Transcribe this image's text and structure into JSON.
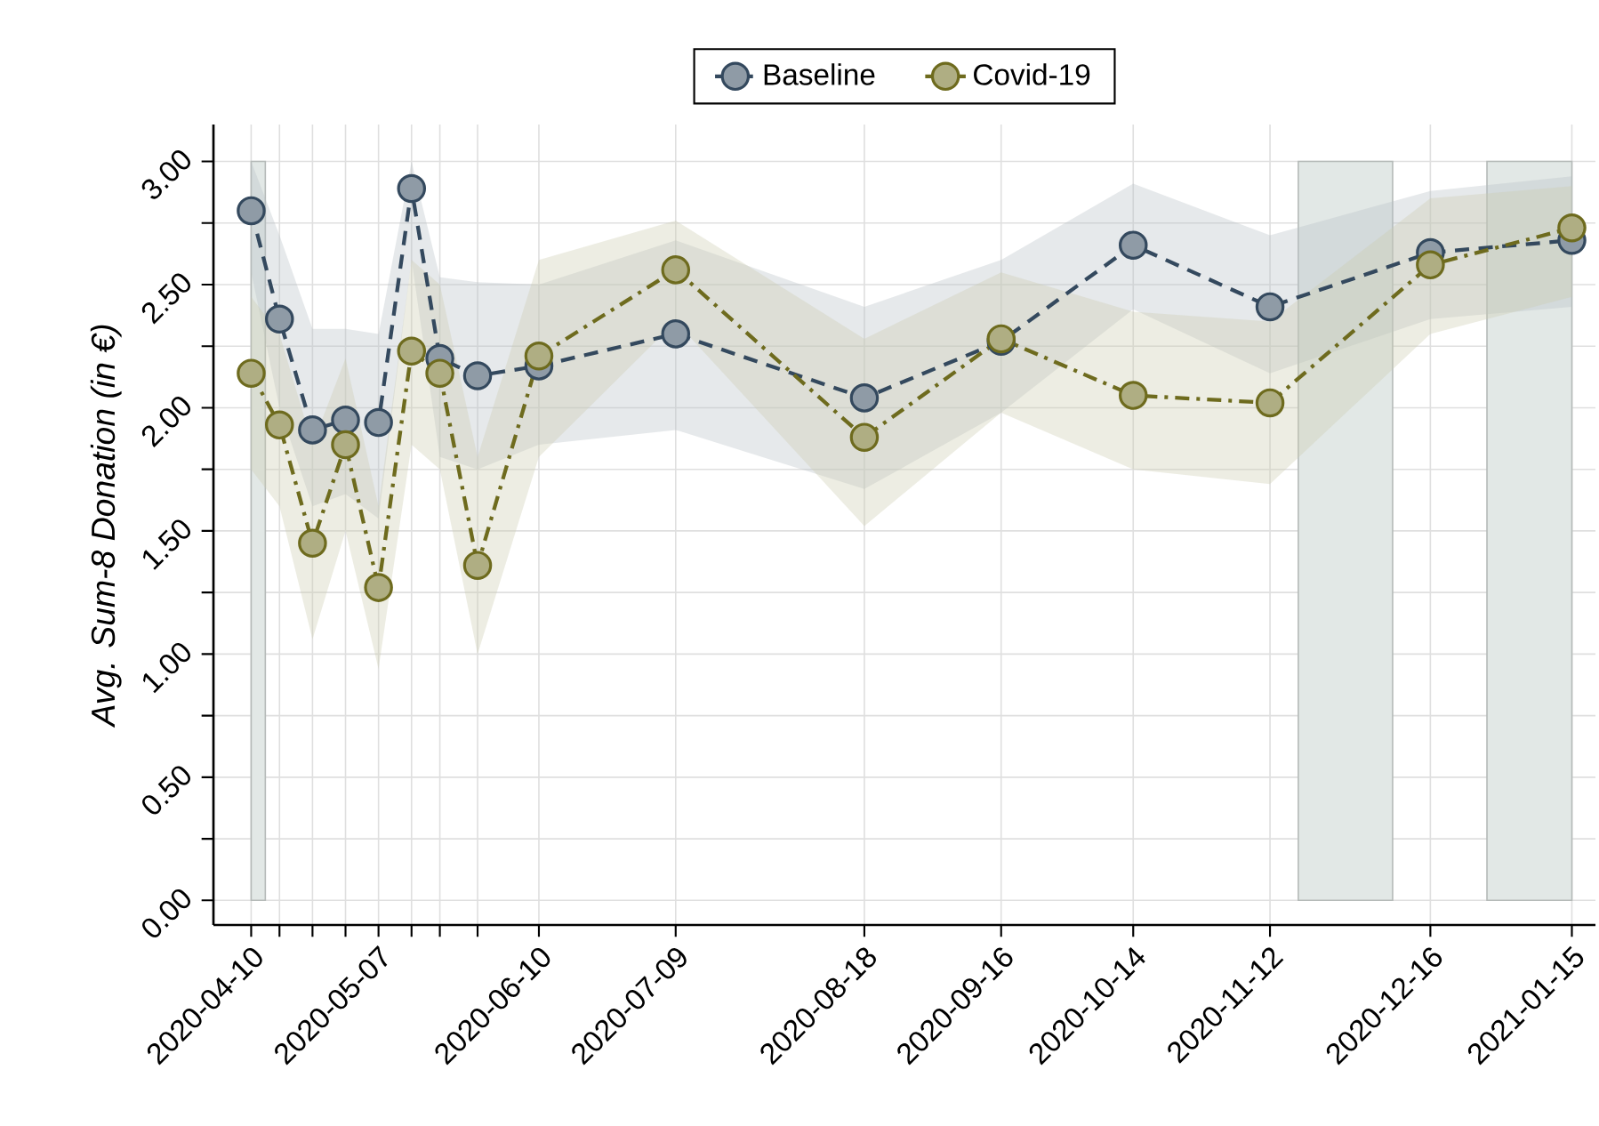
{
  "chart_data": {
    "type": "line",
    "ylabel": "Avg. Sum-8 Donation (in €)",
    "x": [
      "2020-04-10",
      "2020-04-16",
      "2020-04-23",
      "2020-04-30",
      "2020-05-07",
      "2020-05-14",
      "2020-05-20",
      "2020-05-28",
      "2020-06-10",
      "2020-07-09",
      "2020-08-18",
      "2020-09-16",
      "2020-10-14",
      "2020-11-12",
      "2020-12-16",
      "2021-01-15"
    ],
    "series": [
      {
        "name": "Baseline",
        "color": "#34495e",
        "line_style": "dashed",
        "values": [
          2.8,
          2.36,
          1.91,
          1.95,
          1.94,
          2.89,
          2.2,
          2.13,
          2.17,
          2.3,
          2.04,
          2.27,
          2.66,
          2.41,
          2.63,
          2.68
        ],
        "lower": [
          2.55,
          2.0,
          1.6,
          1.65,
          1.55,
          2.6,
          1.8,
          1.75,
          1.85,
          1.91,
          1.67,
          1.98,
          2.4,
          2.14,
          2.36,
          2.41
        ],
        "upper": [
          3.0,
          2.7,
          2.32,
          2.32,
          2.3,
          3.0,
          2.53,
          2.51,
          2.5,
          2.68,
          2.41,
          2.6,
          2.91,
          2.7,
          2.88,
          2.94
        ]
      },
      {
        "name": "Covid-19",
        "color": "#6e6b1e",
        "line_style": "dashdot",
        "values": [
          2.14,
          1.93,
          1.45,
          1.85,
          1.27,
          2.23,
          2.14,
          1.36,
          2.21,
          2.56,
          1.88,
          2.28,
          2.05,
          2.02,
          2.58,
          2.73
        ],
        "lower": [
          1.75,
          1.6,
          1.06,
          1.5,
          0.94,
          1.85,
          1.75,
          1.0,
          1.8,
          2.35,
          1.52,
          1.98,
          1.75,
          1.69,
          2.3,
          2.45
        ],
        "upper": [
          2.45,
          2.3,
          1.85,
          2.2,
          1.6,
          2.6,
          2.5,
          1.8,
          2.6,
          2.76,
          2.28,
          2.55,
          2.39,
          2.35,
          2.85,
          2.9
        ]
      }
    ],
    "xlim": [
      "2020-04-02",
      "2021-01-20"
    ],
    "xticks": [
      {
        "value": "2020-04-10",
        "label": "2020-04-10"
      },
      {
        "value": "2020-04-16",
        "label": null
      },
      {
        "value": "2020-04-23",
        "label": null
      },
      {
        "value": "2020-04-30",
        "label": null
      },
      {
        "value": "2020-05-07",
        "label": "2020-05-07"
      },
      {
        "value": "2020-05-14",
        "label": null
      },
      {
        "value": "2020-05-20",
        "label": null
      },
      {
        "value": "2020-05-28",
        "label": null
      },
      {
        "value": "2020-06-10",
        "label": "2020-06-10"
      },
      {
        "value": "2020-07-09",
        "label": "2020-07-09"
      },
      {
        "value": "2020-08-18",
        "label": "2020-08-18"
      },
      {
        "value": "2020-09-16",
        "label": "2020-09-16"
      },
      {
        "value": "2020-10-14",
        "label": "2020-10-14"
      },
      {
        "value": "2020-11-12",
        "label": "2020-11-12"
      },
      {
        "value": "2020-12-16",
        "label": "2020-12-16"
      },
      {
        "value": "2021-01-15",
        "label": "2021-01-15"
      }
    ],
    "ylim": [
      -0.1,
      3.15
    ],
    "yticks": [
      {
        "value": 0,
        "label": "0.00"
      },
      {
        "value": 0.25,
        "label": null
      },
      {
        "value": 0.5,
        "label": "0.50"
      },
      {
        "value": 0.75,
        "label": null
      },
      {
        "value": 1,
        "label": "1.00"
      },
      {
        "value": 1.25,
        "label": null
      },
      {
        "value": 1.5,
        "label": "1.50"
      },
      {
        "value": 1.75,
        "label": null
      },
      {
        "value": 2,
        "label": "2.00"
      },
      {
        "value": 2.25,
        "label": null
      },
      {
        "value": 2.5,
        "label": "2.50"
      },
      {
        "value": 2.75,
        "label": null
      },
      {
        "value": 3,
        "label": "3.00"
      }
    ],
    "bands": [
      {
        "axis": "x",
        "from": "2020-04-10",
        "to": "2020-04-13",
        "color": "#e2e8e6"
      },
      {
        "axis": "x",
        "from": "2020-11-18",
        "to": "2020-12-08",
        "color": "#e2e8e6"
      },
      {
        "axis": "x",
        "from": "2020-12-28",
        "to": "2021-01-15",
        "color": "#e2e8e6"
      }
    ],
    "grid": true,
    "marker": "circle",
    "legend": "top"
  }
}
